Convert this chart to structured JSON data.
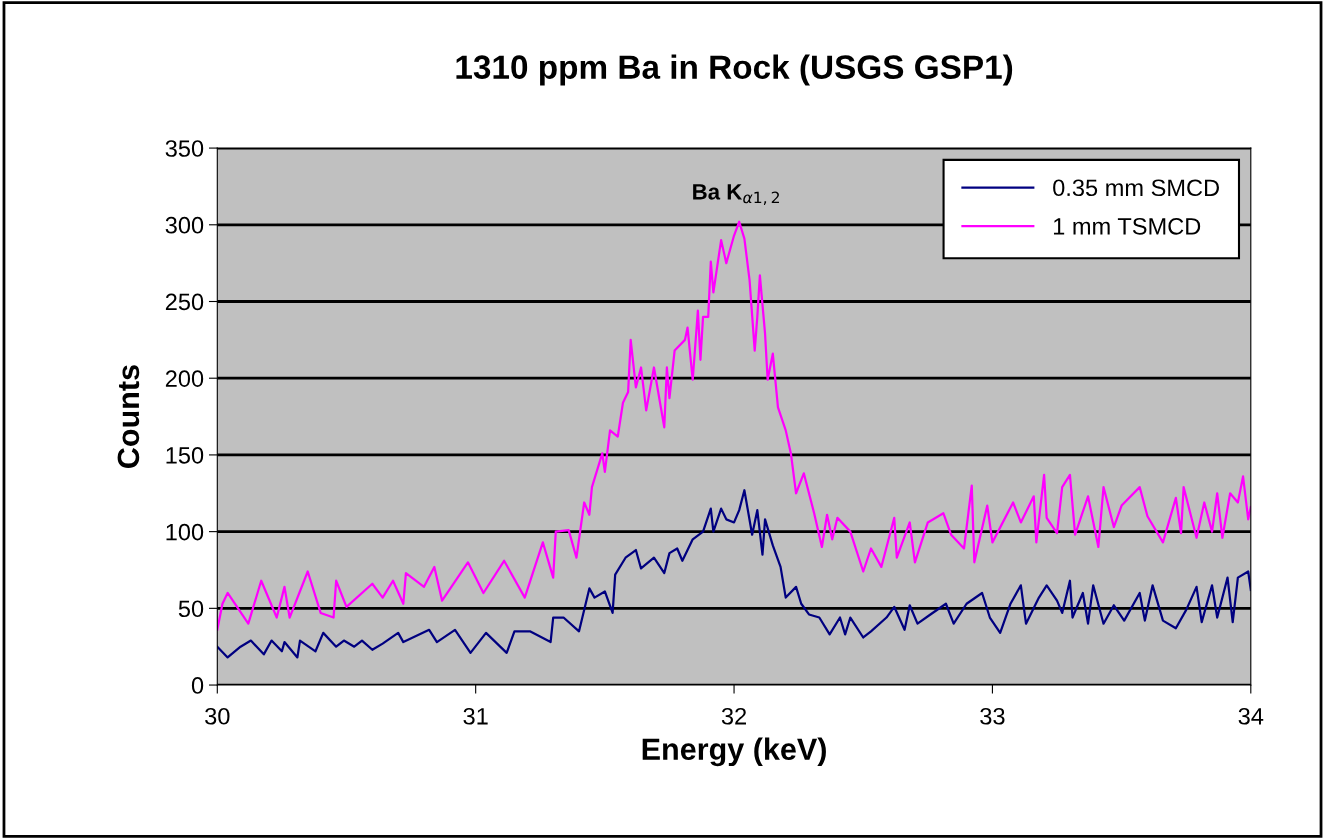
{
  "chart_data": {
    "type": "line",
    "title": "1310 ppm Ba in Rock (USGS GSP1)",
    "xlabel": "Energy (keV)",
    "ylabel": "Counts",
    "xlim": [
      30,
      34
    ],
    "xticks": [
      30,
      31,
      32,
      33,
      34
    ],
    "ylim": [
      0,
      350
    ],
    "yticks": [
      0,
      50,
      100,
      150,
      200,
      250,
      300,
      350
    ],
    "grid": "y",
    "legend": "top right",
    "marker": "none",
    "line_style": "solid",
    "annotations": [
      {
        "text": "Ba K$_{α1,2}$",
        "x": 32.02,
        "y": 302
      }
    ],
    "series": [
      {
        "name": "0.35 mm SMCD",
        "color": "#000080",
        "x": [
          30.0,
          30.04,
          30.09,
          30.13,
          30.18,
          30.21,
          30.25,
          30.26,
          30.31,
          30.32,
          30.38,
          30.41,
          30.46,
          30.49,
          30.53,
          30.56,
          30.6,
          30.64,
          30.7,
          30.72,
          30.82,
          30.85,
          30.92,
          30.98,
          31.04,
          31.12,
          31.15,
          31.21,
          31.29,
          31.3,
          31.34,
          31.4,
          31.44,
          31.46,
          31.5,
          31.53,
          31.54,
          31.58,
          31.62,
          31.64,
          31.69,
          31.73,
          31.75,
          31.78,
          31.8,
          31.84,
          31.88,
          31.91,
          31.92,
          31.95,
          31.97,
          32.0,
          32.02,
          32.04,
          32.07,
          32.09,
          32.11,
          32.12,
          32.15,
          32.18,
          32.2,
          32.24,
          32.26,
          32.29,
          32.33,
          32.37,
          32.41,
          32.43,
          32.45,
          32.5,
          32.53,
          32.59,
          32.62,
          32.66,
          32.68,
          32.71,
          32.76,
          32.82,
          32.85,
          32.9,
          32.96,
          32.99,
          33.03,
          33.07,
          33.11,
          33.13,
          33.18,
          33.21,
          33.25,
          33.27,
          33.3,
          33.31,
          33.35,
          33.37,
          33.39,
          33.43,
          33.47,
          33.51,
          33.57,
          33.59,
          33.62,
          33.66,
          33.71,
          33.75,
          33.79,
          33.81,
          33.85,
          33.87,
          33.91,
          33.93,
          33.95,
          33.99,
          34.0
        ],
        "values": [
          25,
          18,
          25,
          29,
          20,
          29,
          22,
          28,
          18,
          29,
          22,
          34,
          25,
          29,
          25,
          29,
          23,
          27,
          34,
          28,
          36,
          28,
          36,
          21,
          34,
          21,
          35,
          35,
          28,
          44,
          44,
          35,
          63,
          57,
          61,
          47,
          72,
          83,
          88,
          76,
          83,
          73,
          86,
          89,
          81,
          95,
          100,
          115,
          100,
          115,
          108,
          106,
          114,
          127,
          98,
          114,
          85,
          108,
          91,
          77,
          57,
          64,
          53,
          46,
          44,
          33,
          44,
          33,
          44,
          31,
          35,
          44,
          51,
          36,
          52,
          40,
          46,
          53,
          40,
          53,
          60,
          44,
          34,
          53,
          65,
          40,
          57,
          65,
          55,
          47,
          68,
          44,
          60,
          40,
          65,
          40,
          52,
          42,
          60,
          42,
          65,
          42,
          37,
          49,
          64,
          41,
          65,
          44,
          70,
          41,
          70,
          74,
          62
        ]
      },
      {
        "name": "1 mm TSMCD",
        "color": "#ff00ff",
        "x": [
          30.0,
          30.02,
          30.04,
          30.12,
          30.17,
          30.23,
          30.26,
          30.28,
          30.35,
          30.4,
          30.45,
          30.46,
          30.5,
          30.6,
          30.64,
          30.68,
          30.72,
          30.73,
          30.8,
          30.84,
          30.87,
          30.97,
          31.03,
          31.11,
          31.19,
          31.26,
          31.3,
          31.31,
          31.36,
          31.39,
          31.42,
          31.44,
          31.45,
          31.49,
          31.5,
          31.52,
          31.55,
          31.57,
          31.59,
          31.6,
          31.62,
          31.64,
          31.66,
          31.69,
          31.73,
          31.74,
          31.75,
          31.77,
          31.81,
          31.82,
          31.84,
          31.86,
          31.87,
          31.88,
          31.9,
          31.91,
          31.92,
          31.95,
          31.97,
          32.0,
          32.02,
          32.04,
          32.06,
          32.08,
          32.09,
          32.1,
          32.12,
          32.13,
          32.15,
          32.17,
          32.2,
          32.22,
          32.24,
          32.27,
          32.31,
          32.34,
          32.36,
          32.38,
          32.4,
          32.45,
          32.5,
          32.53,
          32.57,
          32.62,
          32.63,
          32.68,
          32.7,
          32.75,
          32.81,
          32.84,
          32.89,
          32.92,
          32.93,
          32.98,
          33.0,
          33.08,
          33.11,
          33.16,
          33.17,
          33.2,
          33.21,
          33.25,
          33.27,
          33.3,
          33.32,
          33.37,
          33.41,
          33.43,
          33.47,
          33.5,
          33.57,
          33.6,
          33.66,
          33.71,
          33.73,
          33.74,
          33.79,
          33.82,
          33.85,
          33.87,
          33.89,
          33.92,
          33.95,
          33.97,
          33.99,
          34.0
        ],
        "values": [
          36,
          53,
          60,
          40,
          68,
          44,
          64,
          44,
          74,
          47,
          44,
          68,
          51,
          66,
          57,
          68,
          53,
          73,
          64,
          77,
          55,
          80,
          60,
          81,
          57,
          93,
          70,
          100,
          101,
          83,
          119,
          111,
          129,
          151,
          139,
          166,
          162,
          184,
          191,
          225,
          194,
          207,
          179,
          207,
          168,
          207,
          187,
          218,
          225,
          233,
          199,
          244,
          212,
          240,
          240,
          276,
          256,
          290,
          275,
          293,
          302,
          291,
          264,
          218,
          240,
          267,
          229,
          199,
          216,
          181,
          166,
          151,
          125,
          138,
          112,
          90,
          111,
          95,
          109,
          100,
          74,
          89,
          77,
          109,
          83,
          106,
          80,
          106,
          112,
          98,
          89,
          130,
          80,
          117,
          93,
          119,
          106,
          123,
          93,
          137,
          109,
          99,
          129,
          137,
          98,
          123,
          90,
          129,
          103,
          117,
          129,
          110,
          93,
          122,
          99,
          129,
          96,
          119,
          100,
          125,
          96,
          125,
          119,
          136,
          108,
          116
        ]
      }
    ]
  }
}
